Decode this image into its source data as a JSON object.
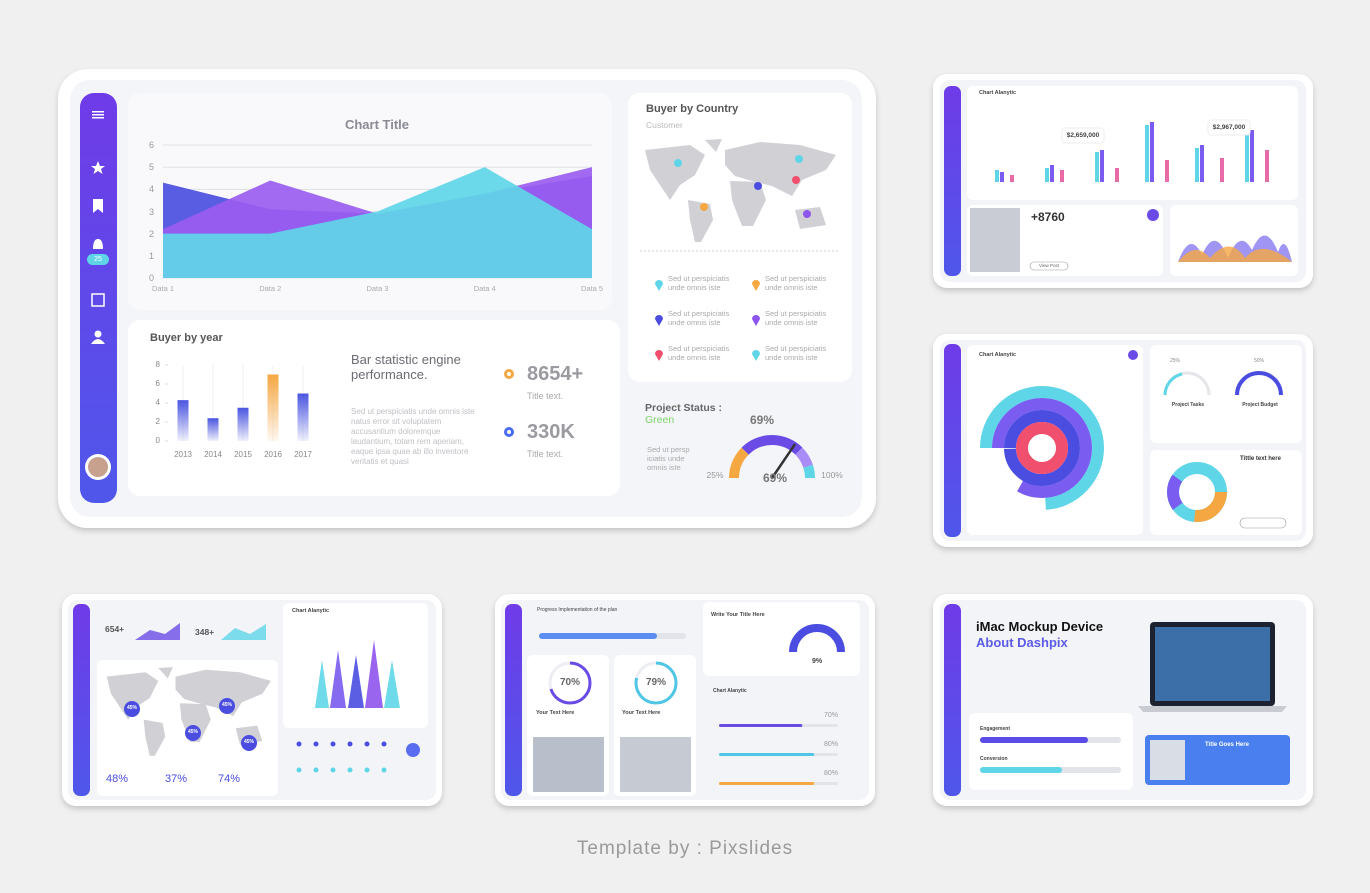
{
  "main": {
    "sidebar_badge": "25",
    "area_chart": {
      "type": "area",
      "title": "Chart Title",
      "categories": [
        "Data 1",
        "Data 2",
        "Data 3",
        "Data 4",
        "Data 5"
      ],
      "series": [
        {
          "color": "#4b4fe0",
          "values": [
            4.3,
            3.1,
            2.9,
            3.8,
            4.6
          ]
        },
        {
          "color": "#9a5cf0",
          "values": [
            2.2,
            4.4,
            2.9,
            3.8,
            5.0
          ]
        },
        {
          "color": "#5fd6e8",
          "values": [
            2.0,
            2.0,
            3.0,
            5.0,
            2.2
          ]
        }
      ],
      "ylim": [
        0,
        6
      ],
      "yticks": [
        0,
        1,
        2,
        3,
        4,
        5,
        6
      ],
      "grid": true
    },
    "buyer_by_year": {
      "type": "bar",
      "title": "Buyer by year",
      "categories": [
        "2013",
        "2014",
        "2015",
        "2016",
        "2017"
      ],
      "values": [
        4.3,
        2.4,
        3.5,
        7.0,
        5.0
      ],
      "colors": [
        "#4a55e0",
        "#4a55e0",
        "#4a55e0",
        "#f5a742",
        "#4a55e0"
      ],
      "ylim": [
        0,
        8
      ],
      "yticks": [
        0,
        2,
        4,
        6,
        8
      ]
    },
    "description": {
      "heading": "Bar statistic engine performance.",
      "body": "Sed ut perspiciatis unde omnis iste natus error sit voluptatem accusantium doloremque laudantium, totam rem aperiam, eaque ipsa quae ab illo inventore veritatis et quasi"
    },
    "stats": [
      {
        "value": "8654+",
        "label": "Title text.",
        "color": "#f5a742"
      },
      {
        "value": "330K",
        "label": "Title text.",
        "color": "#4a6cf0"
      }
    ],
    "buyer_by_country": {
      "title": "Buyer by Country",
      "subtitle": "Customer",
      "legend": [
        {
          "text": "Sed ut perspiciatis unde omnis iste",
          "color": "#5fd6e8"
        },
        {
          "text": "Sed ut perspiciatis unde omnis iste",
          "color": "#f5a742"
        },
        {
          "text": "Sed ut perspiciatis unde omnis iste",
          "color": "#4a4de0"
        },
        {
          "text": "Sed ut perspiciatis unde omnis iste",
          "color": "#8e55ee"
        },
        {
          "text": "Sed ut perspiciatis unde omnis iste",
          "color": "#f0506e"
        },
        {
          "text": "Sed ut perspiciatis unde omnis iste",
          "color": "#5fd6e8"
        }
      ]
    },
    "project_status": {
      "title": "Project Status :",
      "status": "Green",
      "text": "Sed ut persp iciatis unde omnis iste",
      "gauge": {
        "value": 69,
        "label": "69%",
        "min_label": "25%",
        "max_label": "100%"
      }
    }
  },
  "cards": {
    "analytics": {
      "title": "Chart Alanytic",
      "callouts": [
        "$2,659,000",
        "$2,967,000"
      ],
      "stat": "+8760",
      "button": "View Post"
    },
    "radial": {
      "title": "Chart Alanytic",
      "gauges": [
        "25%",
        "50%"
      ],
      "gauge_titles": [
        "Project Tasks",
        "Project Budget"
      ],
      "side_title": "Tittle text here"
    },
    "map": {
      "stats": [
        "654+",
        "348+"
      ],
      "title": "Chart Alanytic",
      "pins": [
        "45%",
        "45%",
        "45%",
        "45%"
      ],
      "percents": [
        "48%",
        "37%",
        "74%"
      ]
    },
    "progress": {
      "title": "Progress Implementation of the plan",
      "donuts": [
        {
          "value": 70,
          "label": "70%"
        },
        {
          "value": 79,
          "label": "79%"
        }
      ],
      "donut_captions": [
        "Your Text Here",
        "Your Text Here"
      ],
      "gauge_title": "Write Your Title Here",
      "gauge_label": "9%",
      "bars_title": "Chart Alanytic",
      "bars": [
        {
          "value": 70,
          "label": "70%",
          "color": "#6a4be6"
        },
        {
          "value": 80,
          "label": "80%",
          "color": "#4fc6e6"
        },
        {
          "value": 80,
          "label": "80%",
          "color": "#f5a742"
        }
      ]
    },
    "imac": {
      "title": "iMac Mockup Device",
      "subtitle": "About Dashpix",
      "rows": [
        "Engagement",
        "Conversion"
      ],
      "banner": "Title Goes Here"
    }
  },
  "footer": "Template by : Pixslides"
}
